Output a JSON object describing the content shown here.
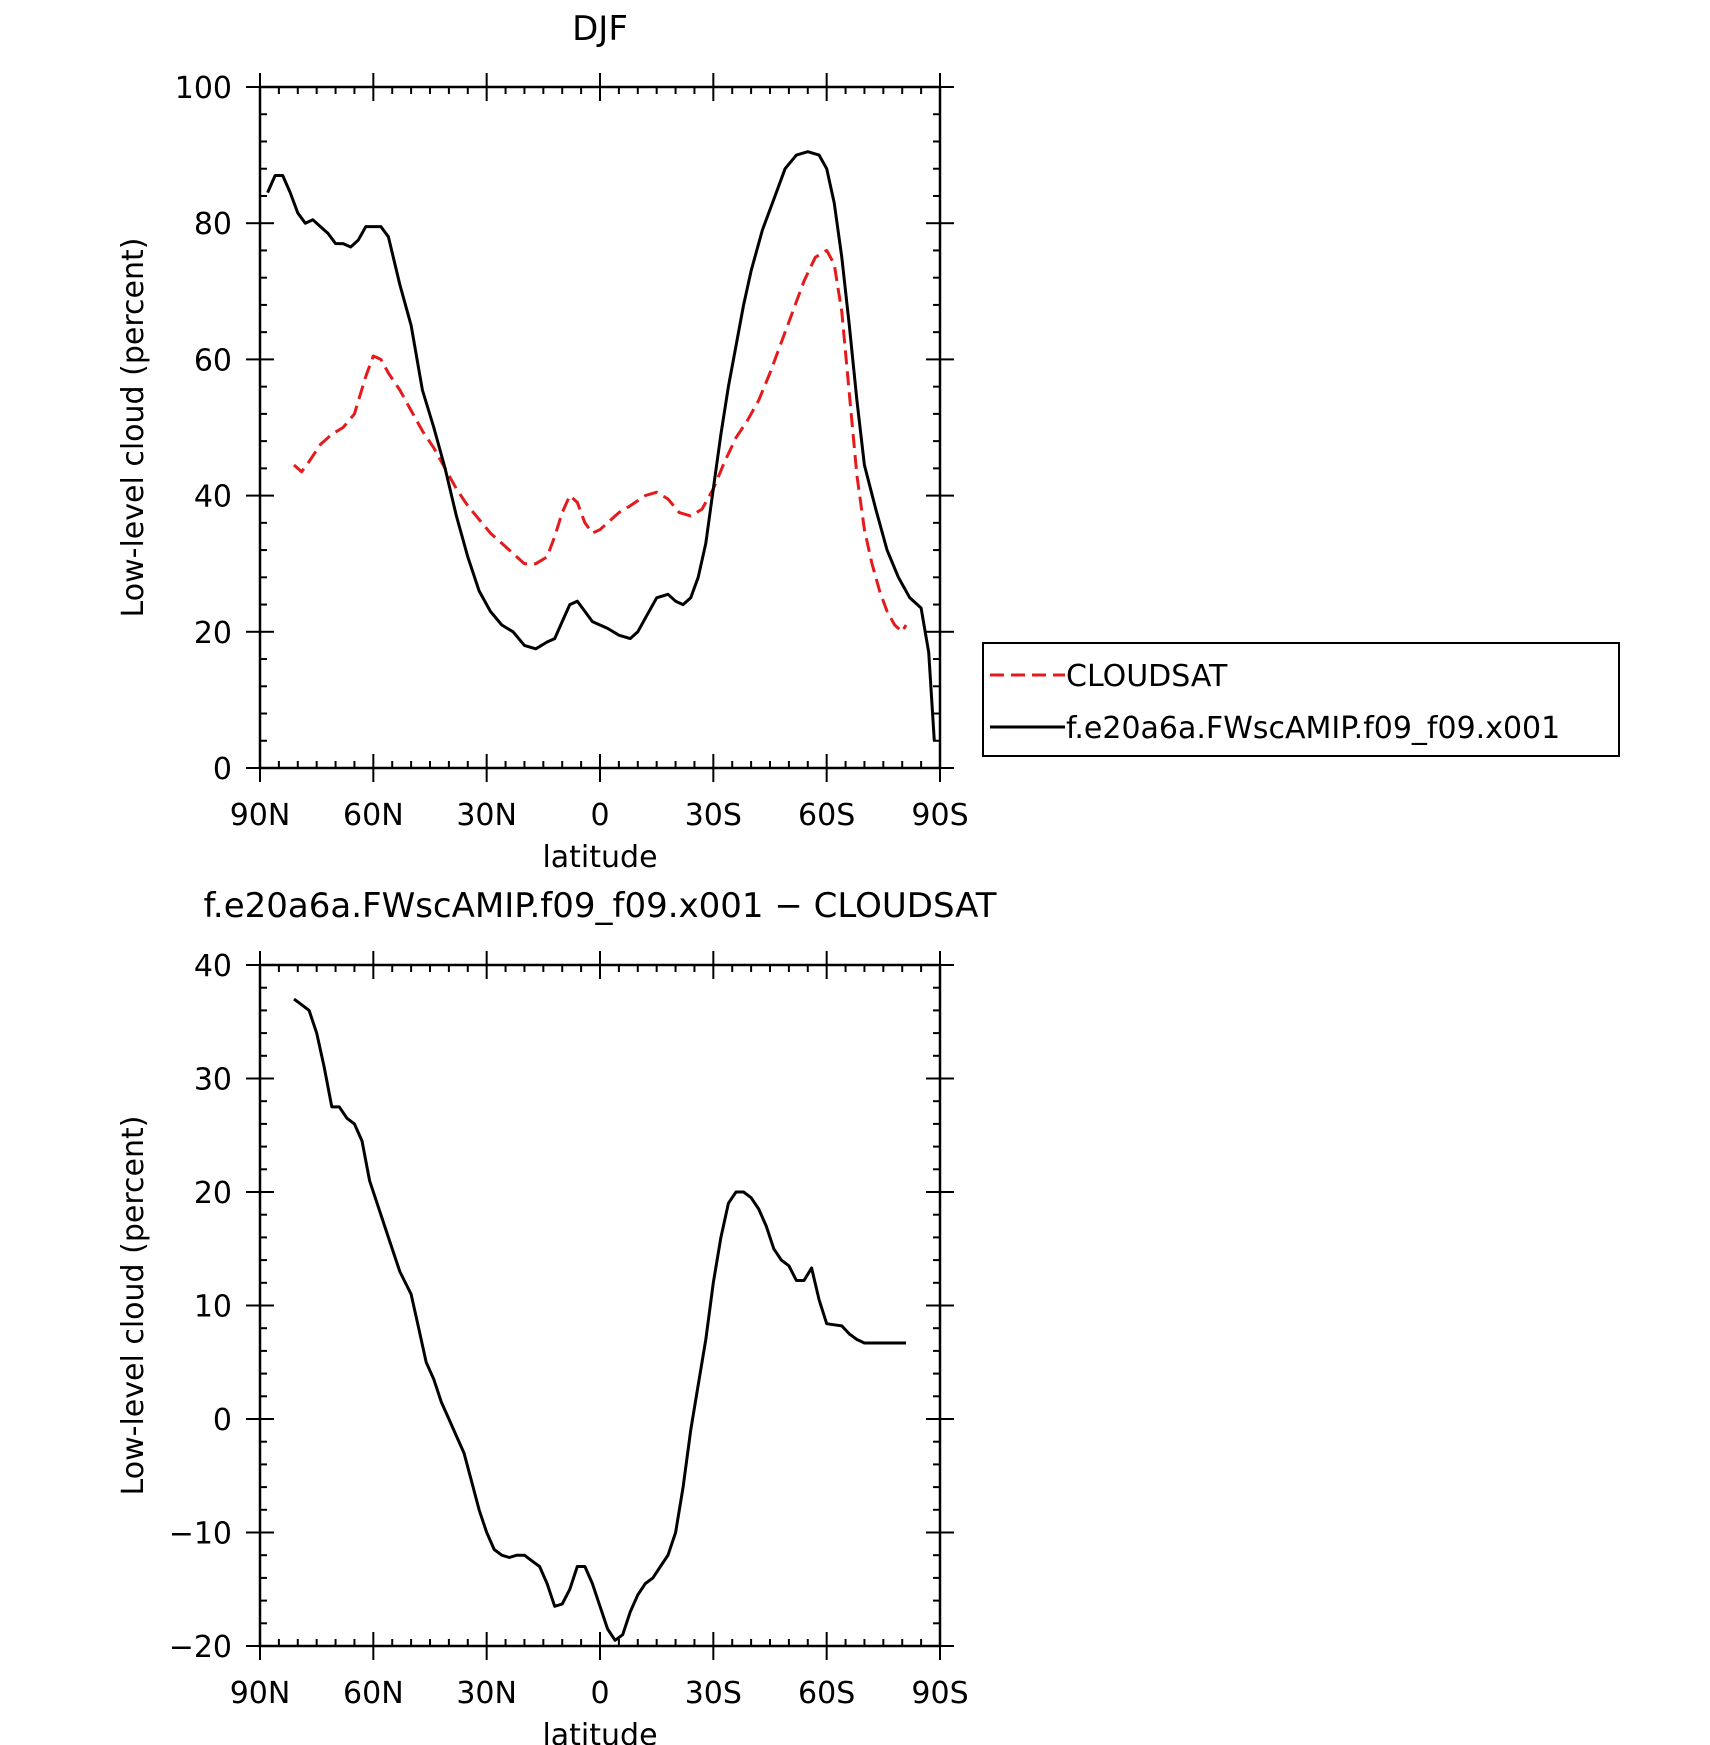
{
  "chart_data": [
    {
      "type": "line",
      "title": "DJF",
      "xlabel": "latitude",
      "ylabel": "Low-level cloud (percent)",
      "xlim": [
        90,
        -90
      ],
      "ylim": [
        0,
        100
      ],
      "x_ticks": [
        90,
        60,
        30,
        0,
        -30,
        -60,
        -90
      ],
      "x_tick_labels": [
        "90N",
        "60N",
        "30N",
        "0",
        "30S",
        "60S",
        "90S"
      ],
      "y_ticks": [
        0,
        20,
        40,
        60,
        80,
        100
      ],
      "y_tick_labels": [
        "0",
        "20",
        "40",
        "60",
        "80",
        "100"
      ],
      "legend_position": "right",
      "grid": false,
      "series": [
        {
          "name": "CLOUDSAT",
          "color": "#e41a1c",
          "style": "dashed",
          "x": [
            81,
            79,
            77,
            74,
            71,
            68,
            65,
            62,
            60,
            58,
            56,
            53,
            50,
            47,
            44,
            41,
            38,
            35,
            32,
            29,
            26,
            23,
            20,
            17,
            14,
            12,
            10,
            8,
            6,
            4,
            2,
            0,
            -2,
            -5,
            -8,
            -12,
            -15,
            -18,
            -21,
            -24,
            -27,
            -30,
            -33,
            -36,
            -39,
            -42,
            -45,
            -48,
            -51,
            -54,
            -57,
            -60,
            -62,
            -64,
            -66,
            -68,
            -70,
            -72,
            -74,
            -76,
            -78,
            -80,
            -81
          ],
          "values": [
            44.5,
            43.5,
            45,
            47.5,
            49,
            50,
            52,
            57.5,
            60.5,
            60,
            58,
            55.5,
            52.5,
            49.5,
            47,
            44,
            41,
            38.5,
            36.5,
            34.5,
            33,
            31.5,
            30,
            30,
            31,
            34,
            37.5,
            40,
            39,
            36,
            34.5,
            35,
            36,
            37.5,
            38.5,
            40,
            40.5,
            39.5,
            37.5,
            37,
            38,
            41,
            45,
            48.5,
            51,
            54,
            58,
            62.5,
            67,
            71.5,
            75,
            76,
            74,
            67,
            55,
            43,
            35,
            30,
            26,
            23,
            21,
            20,
            21
          ]
        },
        {
          "name": "f.e20a6a.FWscAMIP.f09_f09.x001",
          "color": "#000000",
          "style": "solid",
          "x": [
            88,
            86,
            84,
            82,
            80,
            78,
            76,
            74,
            72,
            70,
            68,
            66,
            64,
            62,
            60,
            58,
            56,
            53,
            50,
            47,
            44,
            41,
            38,
            35,
            32,
            29,
            26,
            23,
            20,
            17,
            14,
            12,
            10,
            8,
            6,
            4,
            2,
            0,
            -2,
            -5,
            -8,
            -10,
            -12,
            -15,
            -18,
            -20,
            -22,
            -24,
            -26,
            -28,
            -30,
            -32,
            -34,
            -36,
            -38,
            -40,
            -43,
            -46,
            -49,
            -52,
            -55,
            -58,
            -60,
            -62,
            -64,
            -66,
            -68,
            -70,
            -73,
            -76,
            -79,
            -82,
            -85,
            -87,
            -88.5
          ],
          "values": [
            84.5,
            87,
            87,
            84.5,
            81.5,
            80,
            80.5,
            79.5,
            78.5,
            77,
            77,
            76.5,
            77.5,
            79.5,
            79.5,
            79.5,
            78,
            71,
            65,
            55.5,
            50,
            44,
            37,
            31,
            26,
            23,
            21,
            20,
            18,
            17.5,
            18.5,
            19,
            21.5,
            24,
            24.5,
            23,
            21.5,
            21,
            20.5,
            19.5,
            19,
            20,
            22,
            25,
            25.5,
            24.5,
            24,
            25,
            28,
            33,
            41,
            49,
            56,
            62,
            68,
            73,
            79,
            83.5,
            88,
            90,
            90.5,
            90,
            88,
            83,
            75,
            65,
            54,
            44.5,
            38,
            32,
            28,
            25,
            23.5,
            17,
            4
          ]
        }
      ]
    },
    {
      "type": "line",
      "title": "f.e20a6a.FWscAMIP.f09_f09.x001 − CLOUDSAT",
      "xlabel": "latitude",
      "ylabel": "Low-level cloud (percent)",
      "xlim": [
        90,
        -90
      ],
      "ylim": [
        -20,
        40
      ],
      "x_ticks": [
        90,
        60,
        30,
        0,
        -30,
        -60,
        -90
      ],
      "x_tick_labels": [
        "90N",
        "60N",
        "30N",
        "0",
        "30S",
        "60S",
        "90S"
      ],
      "y_ticks": [
        -20,
        -10,
        0,
        10,
        20,
        30,
        40
      ],
      "y_tick_labels": [
        "−20",
        "−10",
        "0",
        "10",
        "20",
        "30",
        "40"
      ],
      "grid": false,
      "series": [
        {
          "color": "#000000",
          "style": "solid",
          "x": [
            81,
            79,
            77,
            75,
            73,
            71,
            69,
            67,
            65,
            63,
            61,
            59,
            56,
            53,
            50,
            48,
            46,
            44,
            42,
            40,
            38,
            36,
            34,
            32,
            30,
            28,
            26,
            24,
            22,
            20,
            18,
            16,
            14,
            12,
            10,
            8,
            6,
            4,
            2,
            0,
            -2,
            -4,
            -6,
            -8,
            -10,
            -12,
            -14,
            -16,
            -18,
            -20,
            -22,
            -24,
            -26,
            -28,
            -30,
            -32,
            -34,
            -36,
            -38,
            -40,
            -42,
            -44,
            -46,
            -48,
            -50,
            -52,
            -54,
            -56,
            -58,
            -60,
            -62,
            -64,
            -66,
            -68,
            -70,
            -72,
            -74,
            -76,
            -78,
            -80,
            -81
          ],
          "values": [
            37,
            36.5,
            36,
            34,
            31,
            27.5,
            27.5,
            26.5,
            26,
            24.5,
            21,
            19,
            16,
            13,
            11,
            8,
            5,
            3.5,
            1.5,
            0,
            -1.5,
            -3,
            -5.5,
            -8,
            -10,
            -11.5,
            -12,
            -12.2,
            -12,
            -12,
            -12.5,
            -13,
            -14.5,
            -16.5,
            -16.3,
            -15,
            -13,
            -13,
            -14.5,
            -16.5,
            -18.5,
            -19.5,
            -19,
            -17,
            -15.5,
            -14.5,
            -14,
            -13,
            -12,
            -10,
            -6,
            -1,
            3,
            7,
            12,
            16,
            19,
            20,
            20,
            19.5,
            18.5,
            17,
            15,
            14,
            13.5,
            12.2,
            12.2,
            13.3,
            10.5,
            8.4,
            8.3,
            8.2,
            7.5,
            7,
            6.7,
            6.7,
            6.7,
            6.7,
            6.7,
            6.7,
            6.7
          ]
        }
      ]
    }
  ]
}
